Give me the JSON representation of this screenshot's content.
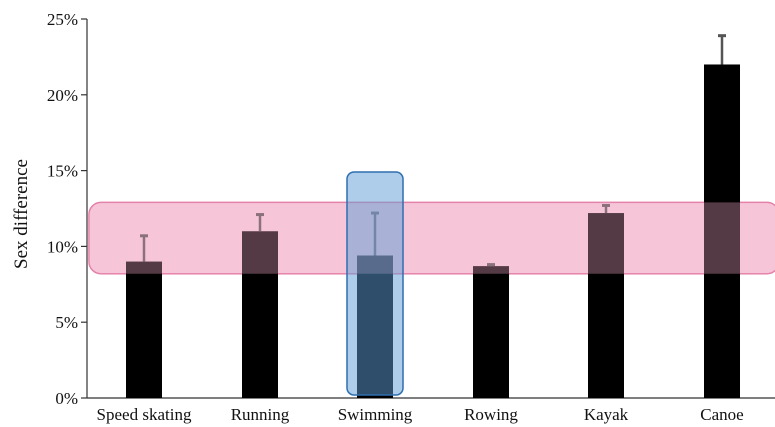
{
  "chart_data": {
    "type": "bar",
    "title": "",
    "xlabel": "",
    "ylabel": "Sex difference",
    "ylim": [
      0,
      25
    ],
    "yticks": [
      0,
      5,
      10,
      15,
      20,
      25
    ],
    "ytick_labels": [
      "0%",
      "5%",
      "10%",
      "15%",
      "20%",
      "25%"
    ],
    "categories": [
      "Speed skating",
      "Running",
      "Swimming",
      "Rowing",
      "Kayak",
      "Canoe"
    ],
    "values": [
      9.0,
      11.0,
      9.4,
      8.7,
      12.2,
      22.0
    ],
    "error_upper": [
      10.7,
      12.1,
      12.2,
      8.8,
      12.7,
      23.9
    ],
    "grid": false,
    "bar_color": "#000000",
    "error_bar_color": "#555555",
    "highlight_band": {
      "y_range": [
        8.2,
        12.9
      ],
      "color": "#f2a7c3"
    },
    "highlight_category": {
      "category": "Swimming",
      "color": "#5b9bd5"
    }
  }
}
